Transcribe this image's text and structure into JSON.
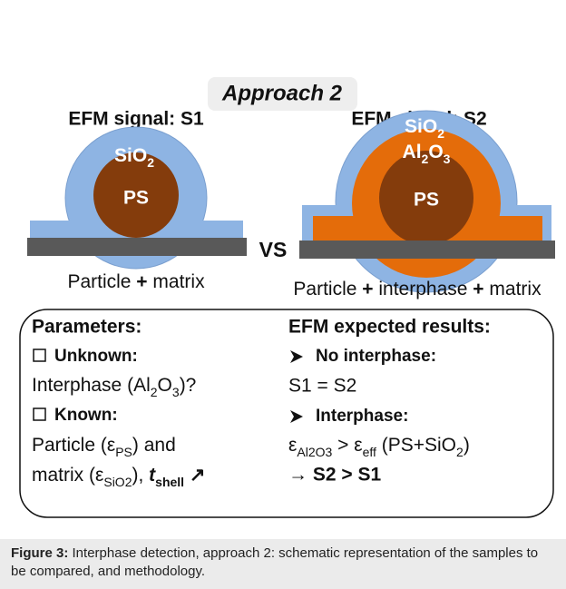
{
  "approach": "Approach 2",
  "left": {
    "signal": "EFM signal: S1",
    "shell": [
      "SiO",
      "2"
    ],
    "core": "PS",
    "label": [
      "Particle ",
      "+",
      " matrix"
    ]
  },
  "right": {
    "signal": "EFM signal: S2",
    "shell": [
      "SiO",
      "2"
    ],
    "interphase": [
      "Al",
      "2",
      "O",
      "3"
    ],
    "core": "PS",
    "label": [
      "Particle ",
      "+",
      " interphase ",
      "+",
      " matrix"
    ]
  },
  "vs": "VS",
  "parameters": {
    "title": "Parameters:",
    "unknown": "Unknown:",
    "unknown_item": [
      "Interphase (Al",
      "2",
      "O",
      "3",
      ")?"
    ],
    "known": "Known:",
    "known_item_1": [
      "Particle (ε",
      "PS",
      ") and"
    ],
    "known_item_2": [
      "matrix (ε",
      "SiO2",
      "), ",
      "t",
      "shell",
      " ↗"
    ]
  },
  "results": {
    "title": "EFM expected results:",
    "case_1": "No interphase:",
    "result_1": "S1 = S2",
    "case_2": "Interphase:",
    "result_2": [
      "ε",
      "Al2O3",
      " > ε",
      "eff",
      " (PS+SiO",
      "2",
      ")"
    ],
    "conclusion": "→ S2 > S1"
  },
  "caption": {
    "label": "Figure 3:",
    "text": " Interphase detection, approach 2: schematic representation of the samples to be compared, and methodology."
  }
}
